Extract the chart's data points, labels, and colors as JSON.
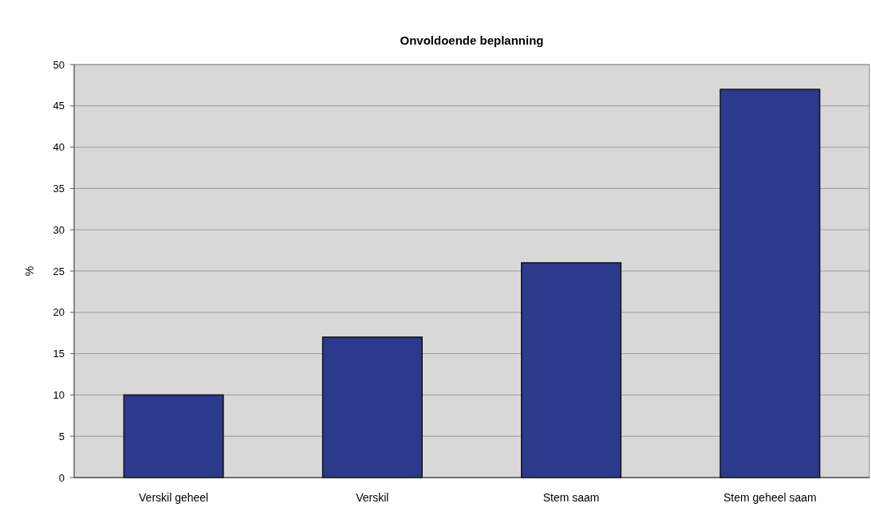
{
  "chart_data": {
    "type": "bar",
    "title": "Onvoldoende beplanning",
    "ylabel": "%",
    "categories": [
      "Verskil geheel",
      "Verskil",
      "Stem saam",
      "Stem geheel saam"
    ],
    "values": [
      10,
      17,
      26,
      47
    ],
    "color": "#2b3a8c",
    "ylim": [
      0,
      50
    ],
    "yticks": [
      0,
      5,
      10,
      15,
      20,
      25,
      30,
      35,
      40,
      45,
      50
    ],
    "grid": "y"
  }
}
